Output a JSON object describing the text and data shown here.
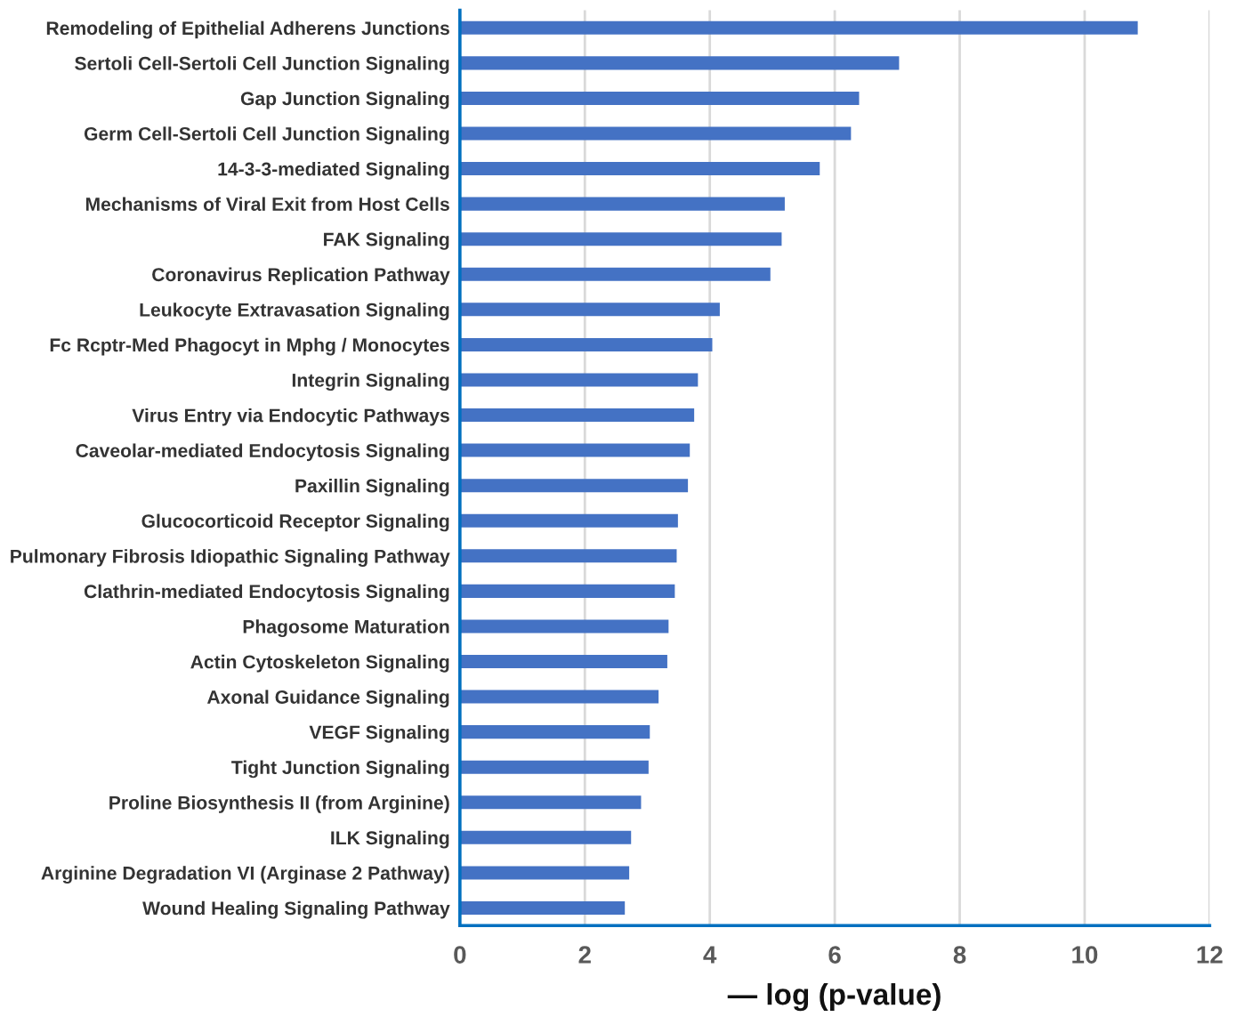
{
  "chart_data": {
    "type": "bar",
    "orientation": "horizontal",
    "xlabel": "— log (p-value)",
    "categories": [
      "Remodeling of Epithelial Adherens Junctions",
      "Sertoli Cell-Sertoli Cell Junction Signaling",
      "Gap Junction Signaling",
      "Germ Cell-Sertoli Cell Junction Signaling",
      "14-3-3-mediated Signaling",
      "Mechanisms of Viral Exit from Host Cells",
      "FAK Signaling",
      "Coronavirus Replication Pathway",
      "Leukocyte Extravasation Signaling",
      "Fc Rcptr-Med Phagocyt in Mphg / Monocytes",
      "Integrin Signaling",
      "Virus Entry via Endocytic Pathways",
      "Caveolar-mediated Endocytosis Signaling",
      "Paxillin Signaling",
      "Glucocorticoid Receptor Signaling",
      "Pulmonary Fibrosis Idiopathic Signaling Pathway",
      "Clathrin-mediated Endocytosis Signaling",
      "Phagosome Maturation",
      "Actin Cytoskeleton Signaling",
      "Axonal Guidance Signaling",
      "VEGF Signaling",
      "Tight Junction Signaling",
      "Proline Biosynthesis II (from Arginine)",
      "ILK Signaling",
      "Arginine Degradation VI (Arginase 2 Pathway)",
      "Wound Healing Signaling Pathway"
    ],
    "values": [
      10.85,
      7.03,
      6.39,
      6.26,
      5.76,
      5.2,
      5.15,
      4.97,
      4.16,
      4.04,
      3.81,
      3.75,
      3.68,
      3.65,
      3.49,
      3.47,
      3.44,
      3.34,
      3.32,
      3.18,
      3.04,
      3.02,
      2.9,
      2.74,
      2.71,
      2.64
    ],
    "color": "#4472c4",
    "xlim": [
      0,
      12
    ],
    "xticks": [
      0,
      2,
      4,
      6,
      8,
      10,
      12
    ],
    "grid": "x",
    "legend": false
  }
}
